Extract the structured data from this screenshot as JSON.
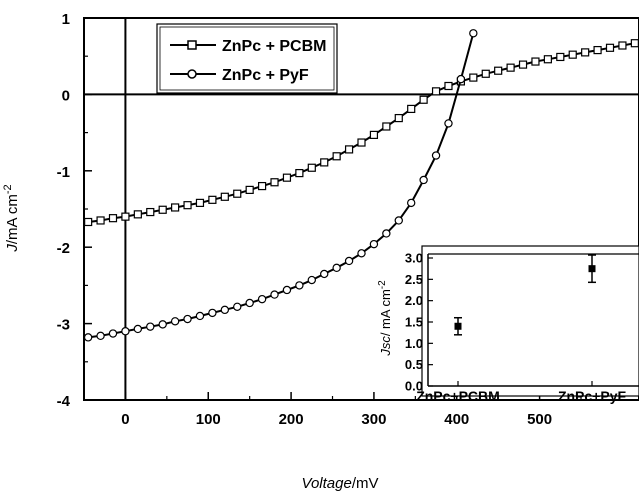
{
  "chart_data": [
    {
      "type": "line",
      "xlabel_italic": "Voltage",
      "xlabel_unit": "/mV",
      "ylabel_italic": "J",
      "ylabel_unit": "/mA cm",
      "ylabel_exp": "-2",
      "xlim": [
        -50,
        620
      ],
      "ylim": [
        -4,
        1
      ],
      "x_ticks": [
        0,
        100,
        200,
        300,
        400,
        500
      ],
      "y_ticks": [
        1,
        0,
        -1,
        -2,
        -3,
        -4
      ],
      "x_tick_labels": [
        "0",
        "100",
        "200",
        "300",
        "400",
        "500"
      ],
      "y_tick_labels": [
        "1",
        "0",
        "-1",
        "-2",
        "-3",
        "-4"
      ],
      "legend_position": "top-left",
      "series": [
        {
          "name": "ZnPc + PCBM",
          "marker": "square",
          "x": [
            -45,
            -30,
            -15,
            0,
            15,
            30,
            45,
            60,
            75,
            90,
            105,
            120,
            135,
            150,
            165,
            180,
            195,
            210,
            225,
            240,
            255,
            270,
            285,
            300,
            315,
            330,
            345,
            360,
            375,
            390,
            405,
            420,
            435,
            450,
            465,
            480,
            495,
            510,
            525,
            540,
            555,
            570,
            585,
            600,
            615
          ],
          "y": [
            -1.67,
            -1.65,
            -1.62,
            -1.6,
            -1.57,
            -1.54,
            -1.51,
            -1.48,
            -1.45,
            -1.42,
            -1.38,
            -1.34,
            -1.3,
            -1.25,
            -1.2,
            -1.15,
            -1.09,
            -1.03,
            -0.96,
            -0.89,
            -0.81,
            -0.72,
            -0.63,
            -0.53,
            -0.42,
            -0.31,
            -0.19,
            -0.07,
            0.04,
            0.11,
            0.17,
            0.22,
            0.27,
            0.31,
            0.35,
            0.39,
            0.43,
            0.46,
            0.49,
            0.52,
            0.55,
            0.58,
            0.61,
            0.64,
            0.67
          ]
        },
        {
          "name": "ZnPc + PyF",
          "marker": "circle",
          "x": [
            -45,
            -30,
            -15,
            0,
            15,
            30,
            45,
            60,
            75,
            90,
            105,
            120,
            135,
            150,
            165,
            180,
            195,
            210,
            225,
            240,
            255,
            270,
            285,
            300,
            315,
            330,
            345,
            360,
            375,
            390,
            405,
            420
          ],
          "y": [
            -3.18,
            -3.16,
            -3.13,
            -3.1,
            -3.07,
            -3.04,
            -3.01,
            -2.97,
            -2.94,
            -2.9,
            -2.86,
            -2.82,
            -2.78,
            -2.73,
            -2.68,
            -2.62,
            -2.56,
            -2.5,
            -2.43,
            -2.35,
            -2.27,
            -2.18,
            -2.08,
            -1.96,
            -1.82,
            -1.65,
            -1.42,
            -1.12,
            -0.8,
            -0.38,
            0.2,
            0.8
          ]
        }
      ]
    },
    {
      "type": "scatter",
      "ylabel_italic": "Jsc",
      "ylabel_unit": "/ mA cm",
      "ylabel_exp": "-2",
      "ylim": [
        0,
        3
      ],
      "y_ticks": [
        0,
        0.5,
        1,
        1.5,
        2,
        2.5,
        3
      ],
      "y_tick_labels": [
        "0.0",
        "0.5",
        "1.0",
        "1.5",
        "2.0",
        "2.5",
        "3.0"
      ],
      "categories": [
        "ZnPc+PCBM",
        "ZnPc+PyF"
      ],
      "values": [
        1.4,
        2.75
      ],
      "errors": [
        0.2,
        0.32
      ]
    }
  ]
}
